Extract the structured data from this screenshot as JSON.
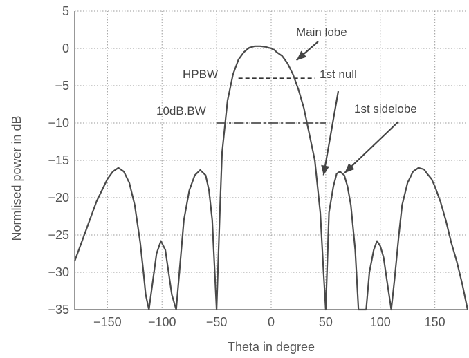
{
  "chart_data": {
    "type": "line",
    "title": "",
    "xlabel": "Theta in degree",
    "ylabel": "Normlised power in dB",
    "xlim": [
      -180,
      180
    ],
    "ylim": [
      -35,
      5
    ],
    "xticks": [
      -150,
      -100,
      -50,
      0,
      50,
      100,
      150
    ],
    "yticks": [
      5,
      0,
      -5,
      -10,
      -15,
      -20,
      -25,
      -30,
      -35
    ],
    "grid": true,
    "series": [
      {
        "x": [
          -180,
          -170,
          -160,
          -150,
          -145,
          -140,
          -135,
          -130,
          -125,
          -120,
          -117,
          -115,
          -112,
          -105,
          -101,
          -97,
          -94,
          -91,
          -87,
          -80,
          -75,
          -70,
          -65,
          -60,
          -57,
          -54,
          -50,
          -47,
          -45,
          -40,
          -35,
          -30,
          -25,
          -20,
          -15,
          -10,
          -5,
          0,
          3,
          5,
          10,
          15,
          20,
          25,
          30,
          35,
          40,
          45,
          48,
          50,
          53,
          57,
          60,
          63,
          67,
          70,
          73,
          77,
          80,
          87,
          90,
          94,
          97,
          100,
          103,
          106,
          110,
          113,
          117,
          120,
          125,
          130,
          135,
          140,
          143,
          147,
          150,
          155,
          160,
          165,
          170,
          175,
          180
        ],
        "y": [
          -28.5,
          -24.5,
          -20.5,
          -17.5,
          -16.5,
          -16.0,
          -16.5,
          -18.0,
          -21.0,
          -26.0,
          -30.0,
          -33.0,
          -35.0,
          -27.5,
          -25.8,
          -27.0,
          -30.0,
          -33.0,
          -35.0,
          -23.0,
          -19.0,
          -17.0,
          -16.3,
          -17.0,
          -19.0,
          -23.0,
          -35.0,
          -22.0,
          -14.0,
          -7.0,
          -3.5,
          -1.5,
          -0.5,
          0.1,
          0.3,
          0.3,
          0.2,
          0.0,
          -0.2,
          -0.5,
          -1.0,
          -2.0,
          -3.5,
          -5.5,
          -8.0,
          -11.5,
          -15.0,
          -22.0,
          -30.0,
          -35.0,
          -22.0,
          -18.5,
          -16.8,
          -16.5,
          -17.0,
          -18.5,
          -21.0,
          -27.0,
          -35.0,
          -35.0,
          -30.0,
          -27.0,
          -25.8,
          -26.5,
          -28.0,
          -31.0,
          -35.0,
          -31.0,
          -25.0,
          -21.0,
          -18.0,
          -16.5,
          -16.0,
          -16.2,
          -16.8,
          -17.5,
          -18.5,
          -20.5,
          -23.0,
          -26.0,
          -28.5,
          -31.5,
          -35.0
        ]
      }
    ],
    "hpbw_line": {
      "x": [
        -30,
        40
      ],
      "y": -4
    },
    "ten_db_line": {
      "x": [
        -50,
        50
      ],
      "y": -10
    },
    "annotations": [
      {
        "text": "Main lobe",
        "point_x": 22,
        "point_y": -1.5
      },
      {
        "text": "HPBW"
      },
      {
        "text": "1st null",
        "point_x": 48,
        "point_y": -17
      },
      {
        "text": "10dB.BW"
      },
      {
        "text": "1st sidelobe",
        "point_x": 61,
        "point_y": -16.5
      }
    ]
  }
}
